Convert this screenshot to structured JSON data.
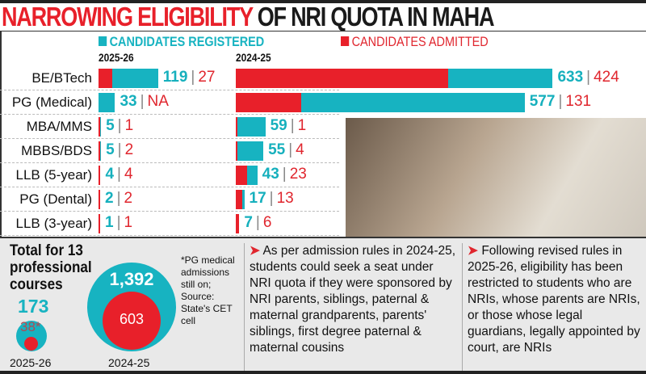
{
  "title": {
    "part1": "NARROWING ELIGIBILITY",
    "part2": "OF NRI QUOTA IN MAHA"
  },
  "colors": {
    "registered": "#17b3c1",
    "admitted": "#e8202a"
  },
  "chart_data": {
    "type": "bar",
    "title": "NARROWING ELIGIBILITY OF NRI QUOTA IN MAHA",
    "legend": [
      "CANDIDATES REGISTERED",
      "CANDIDATES ADMITTED"
    ],
    "categories": [
      "BE/BTech",
      "PG (Medical)",
      "MBA/MMS",
      "MBBS/BDS",
      "LLB (5-year)",
      "PG (Dental)",
      "LLB (3-year)"
    ],
    "panels": [
      {
        "year": "2025-26",
        "registered": [
          119,
          33,
          5,
          5,
          4,
          2,
          1
        ],
        "admitted": [
          27,
          "NA",
          1,
          2,
          4,
          2,
          1
        ]
      },
      {
        "year": "2024-25",
        "registered": [
          633,
          577,
          59,
          55,
          43,
          17,
          7
        ],
        "admitted": [
          424,
          131,
          1,
          4,
          23,
          13,
          6
        ]
      }
    ]
  },
  "totals": {
    "heading": "Total for 13 professional courses",
    "y2025": {
      "year": "2025-26",
      "registered": "173",
      "admitted": "38*"
    },
    "y2024": {
      "year": "2024-25",
      "registered": "1,392",
      "admitted": "603"
    },
    "note": "*PG medical admissions still on; Source: State's CET cell"
  },
  "text": {
    "arrow": "➤",
    "col1": "As per admission rules in 2024-25, students could seek a seat under NRI quota if they were sponsored by NRI parents, siblings, paternal & maternal grandparents, parents' siblings, first degree paternal & maternal cousins",
    "col2": "Following revised rules in 2025-26, eligibility has been restricted to students who are NRIs, whose parents are NRIs, or those whose legal guardians, legally appointed by court, are NRIs"
  }
}
